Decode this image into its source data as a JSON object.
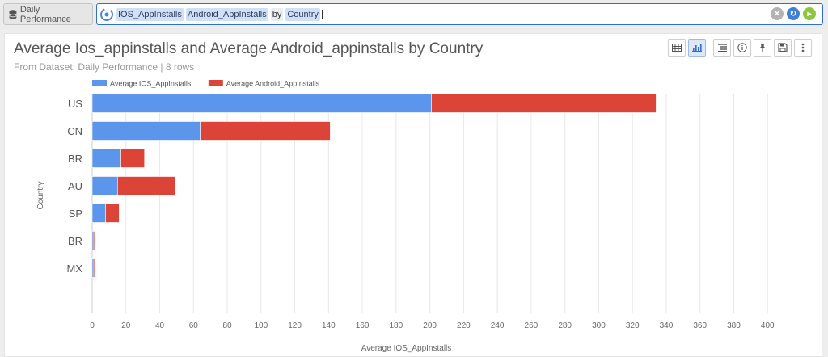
{
  "topbar": {
    "dataset_label": "Daily Performance",
    "query_tokens": [
      "IOS_AppInstalls",
      "Android_AppInstalls",
      "by",
      "Country"
    ]
  },
  "panel": {
    "title": "Average Ios_appinstalls and Average Android_appinstalls by Country",
    "subtitle": "From Dataset: Daily Performance | 8 rows",
    "toolbar_icons": [
      "table-icon",
      "bar-chart-icon",
      "list-icon",
      "info-icon",
      "pin-icon",
      "save-icon",
      "more-icon"
    ]
  },
  "colors": {
    "ios": "#5b95ec",
    "android": "#db4437",
    "accent": "#2f6fd4"
  },
  "chart_data": {
    "type": "bar",
    "orientation": "horizontal",
    "stacked": true,
    "categories": [
      "US",
      "CN",
      "BR",
      "AU",
      "SP",
      "BR",
      "MX",
      ""
    ],
    "series": [
      {
        "name": "Average IOS_AppInstalls",
        "values": [
          201,
          64,
          17,
          15,
          8,
          1,
          1,
          0
        ]
      },
      {
        "name": "Average Android_AppInstalls",
        "values": [
          133,
          77,
          14,
          34,
          8,
          1,
          1,
          0
        ]
      }
    ],
    "xlabel": "Average IOS_AppInstalls",
    "ylabel": "Country",
    "xlim": [
      0,
      420
    ],
    "xticks": [
      0,
      20,
      40,
      60,
      80,
      100,
      120,
      140,
      160,
      180,
      200,
      220,
      240,
      260,
      280,
      300,
      320,
      340,
      360,
      380,
      400
    ],
    "grid": true,
    "legend": "top-left"
  }
}
